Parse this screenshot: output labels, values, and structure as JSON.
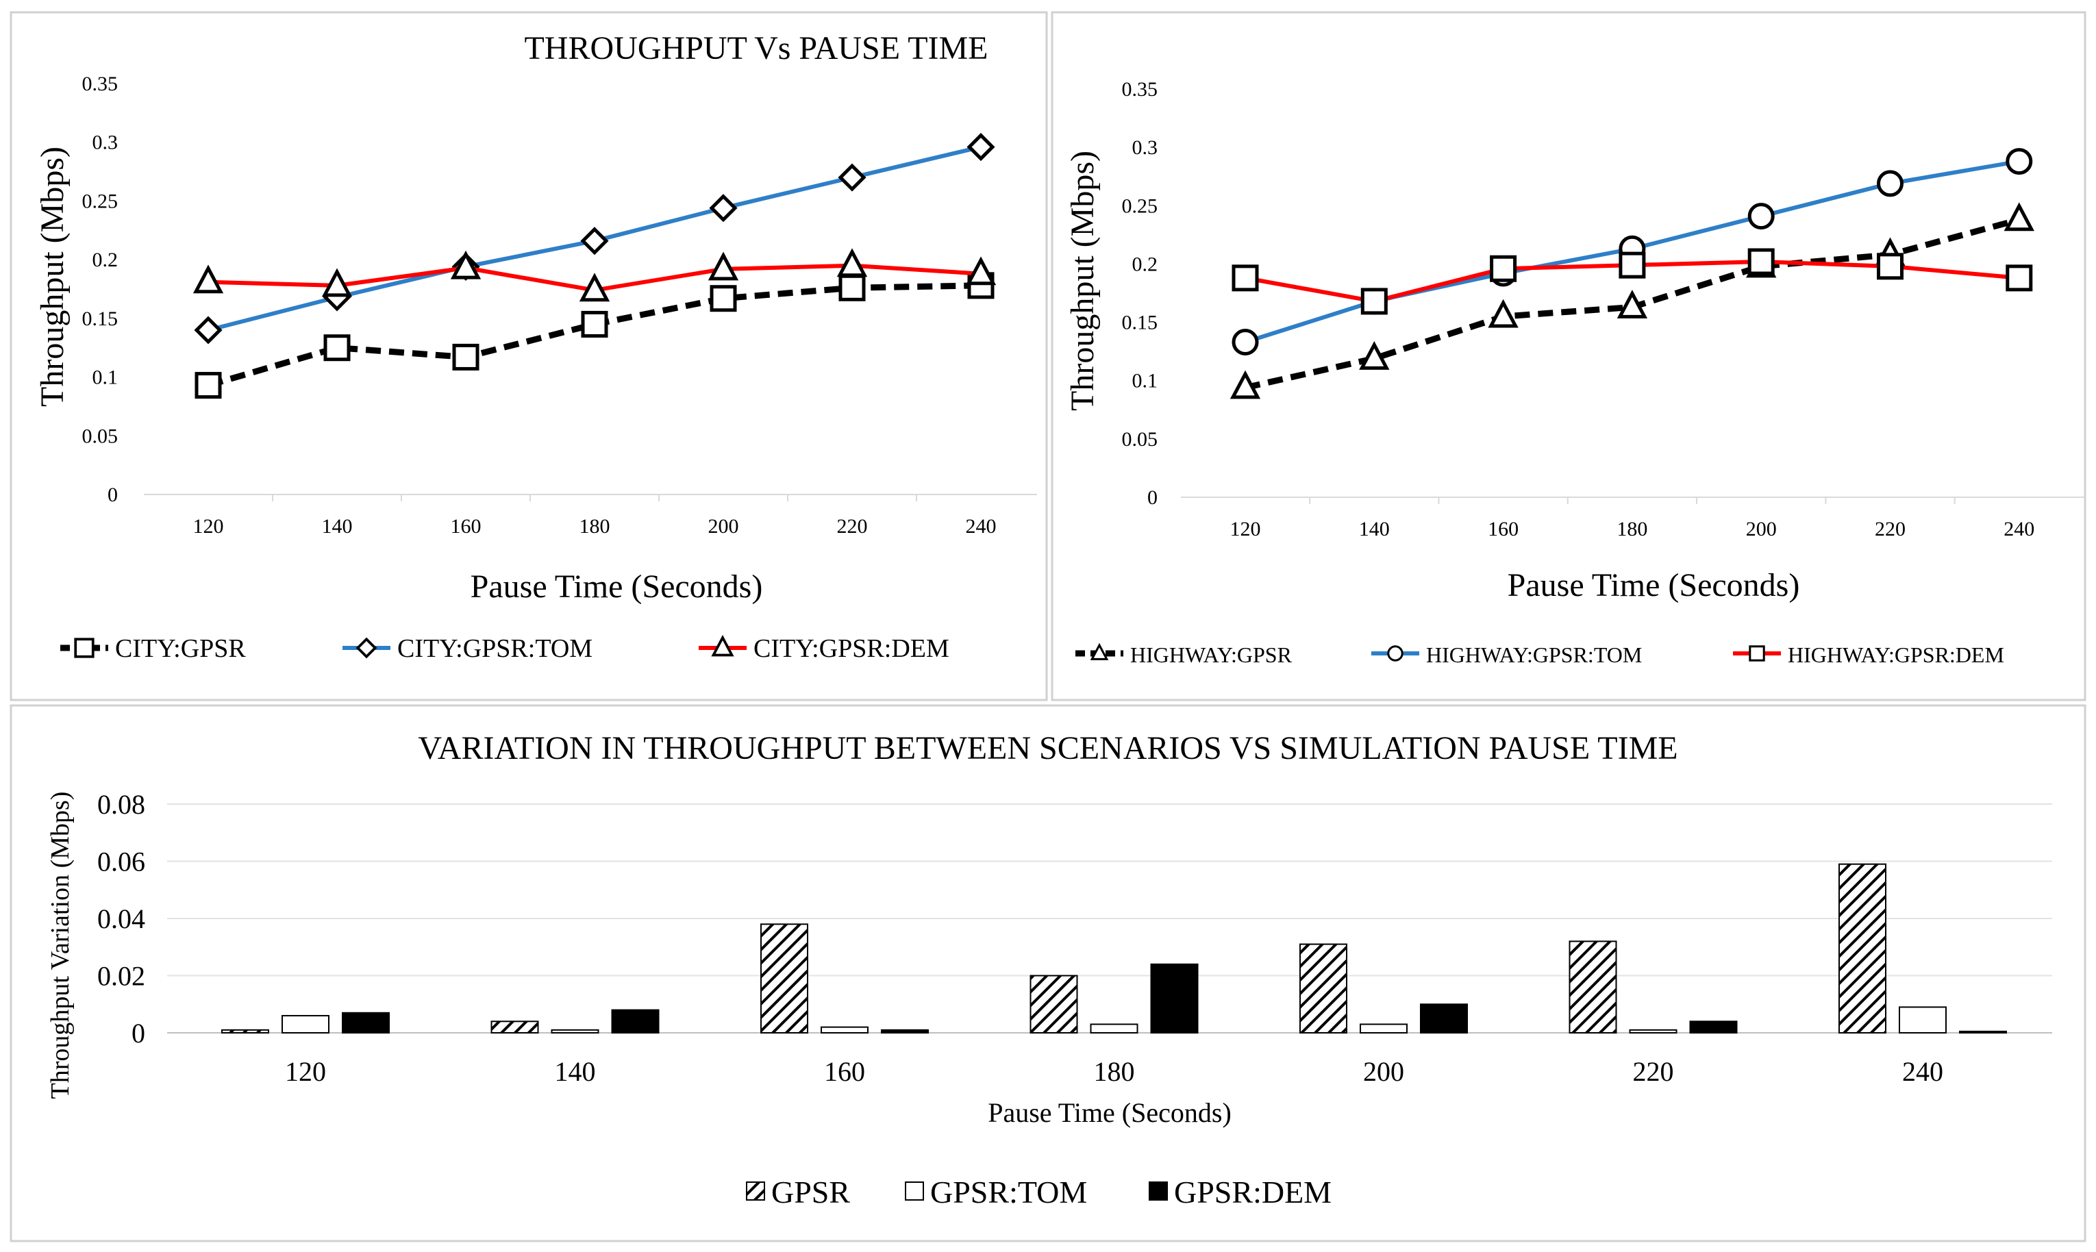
{
  "chart_data": [
    {
      "type": "line",
      "title": "THROUGHPUT  Vs PAUSE TIME",
      "xlabel": "Pause Time (Seconds)",
      "ylabel": "Throughput (Mbps)",
      "ylim": [
        0,
        0.35
      ],
      "yticks": [
        "0.35",
        "0.3",
        "0.25",
        "0.2",
        "0.15",
        "0.1",
        "0.05",
        "0"
      ],
      "categories": [
        "120",
        "140",
        "160",
        "180",
        "200",
        "220",
        "240"
      ],
      "series": [
        {
          "name": "CITY:GPSR",
          "color": "#000000",
          "dashed": true,
          "marker": "square",
          "values": [
            0.093,
            0.125,
            0.117,
            0.145,
            0.167,
            0.176,
            0.178
          ]
        },
        {
          "name": "CITY:GPSR:TOM",
          "color": "#2e7fc8",
          "dashed": false,
          "marker": "diamond",
          "values": [
            0.14,
            0.168,
            0.194,
            0.216,
            0.244,
            0.27,
            0.296
          ]
        },
        {
          "name": "CITY:GPSR:DEM",
          "color": "#ff0000",
          "dashed": false,
          "marker": "triangle",
          "values": [
            0.181,
            0.178,
            0.193,
            0.174,
            0.192,
            0.195,
            0.188
          ]
        }
      ]
    },
    {
      "type": "line",
      "title": "",
      "xlabel": "Pause Time (Seconds)",
      "ylabel": "Throughput (Mbps)",
      "ylim": [
        0,
        0.35
      ],
      "yticks": [
        "0.35",
        "0.3",
        "0.25",
        "0.2",
        "0.15",
        "0.1",
        "0.05",
        "0"
      ],
      "categories": [
        "120",
        "140",
        "160",
        "180",
        "200",
        "220",
        "240"
      ],
      "series": [
        {
          "name": "HIGHWAY:GPSR",
          "color": "#000000",
          "dashed": true,
          "marker": "triangle",
          "values": [
            0.094,
            0.119,
            0.155,
            0.163,
            0.198,
            0.208,
            0.238
          ]
        },
        {
          "name": "HIGHWAY:GPSR:TOM",
          "color": "#2e7fc8",
          "dashed": false,
          "marker": "circle",
          "values": [
            0.133,
            0.168,
            0.192,
            0.213,
            0.241,
            0.269,
            0.288
          ]
        },
        {
          "name": "HIGHWAY:GPSR:DEM",
          "color": "#ff0000",
          "dashed": false,
          "marker": "square",
          "values": [
            0.188,
            0.168,
            0.196,
            0.199,
            0.202,
            0.198,
            0.188
          ]
        }
      ]
    },
    {
      "type": "bar",
      "title": "VARIATION IN THROUGHPUT  BETWEEN SCENARIOS VS SIMULATION PAUSE TIME",
      "xlabel": "Pause Time (Seconds)",
      "ylabel": "Throughput Variation (Mbps)",
      "ylim": [
        0,
        0.08
      ],
      "yticks": [
        "0.08",
        "0.06",
        "0.04",
        "0.02",
        "0"
      ],
      "categories": [
        "120",
        "140",
        "160",
        "180",
        "200",
        "220",
        "240"
      ],
      "series": [
        {
          "name": "GPSR",
          "fill": "hatch",
          "values": [
            0.001,
            0.004,
            0.038,
            0.02,
            0.031,
            0.032,
            0.059
          ]
        },
        {
          "name": "GPSR:TOM",
          "fill": "white",
          "values": [
            0.006,
            0.001,
            0.002,
            0.003,
            0.003,
            0.001,
            0.009
          ]
        },
        {
          "name": "GPSR:DEM",
          "fill": "black",
          "values": [
            0.007,
            0.008,
            0.001,
            0.024,
            0.01,
            0.004,
            0.0005
          ]
        }
      ]
    }
  ]
}
